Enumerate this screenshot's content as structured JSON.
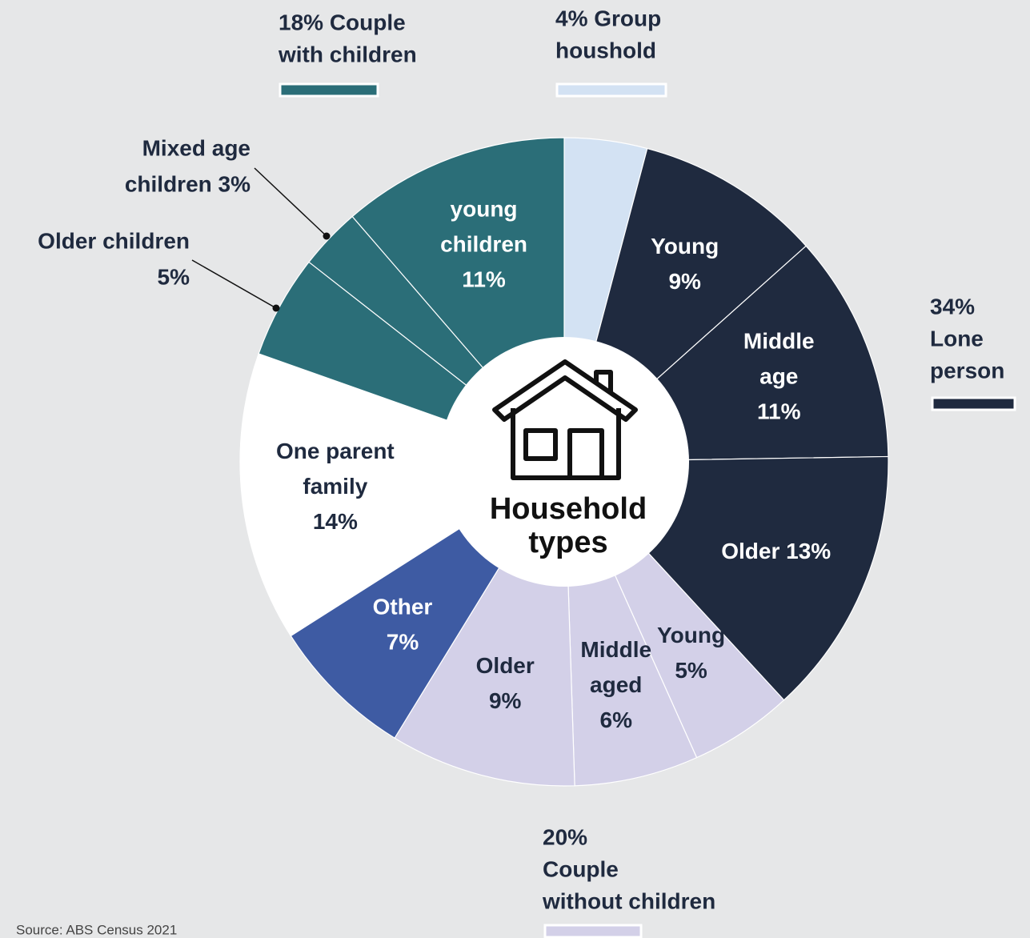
{
  "chart_data": {
    "type": "donut",
    "center_label": [
      "Household",
      "types"
    ],
    "source": "Source: ABS Census 2021",
    "groups": [
      {
        "lines": [
          "18% Couple",
          "with children"
        ],
        "color": "#2b6e78"
      },
      {
        "lines": [
          "4% Group",
          "houshold"
        ],
        "color": "#d3e2f3"
      },
      {
        "lines": [
          "34%",
          "Lone",
          "person"
        ],
        "color": "#1f2a3f"
      },
      {
        "lines": [
          "20%",
          "Couple",
          "without children"
        ],
        "color": "#d3d0e8"
      }
    ],
    "values": [
      4,
      9,
      11,
      13,
      5,
      6,
      9,
      7,
      14,
      5,
      3,
      11
    ],
    "colors": [
      "#d3e2f3",
      "#1f2a3f",
      "#1f2a3f",
      "#1f2a3f",
      "#d3d0e8",
      "#d3d0e8",
      "#d3d0e8",
      "#3e5ba3",
      "#ffffff",
      "#2b6e78",
      "#2b6e78",
      "#2b6e78"
    ],
    "value_labels": [
      null,
      [
        "Young",
        "9%"
      ],
      [
        "Middle",
        "age",
        "11%"
      ],
      [
        "Older 13%"
      ],
      [
        "Young",
        "5%"
      ],
      [
        "Middle",
        "aged",
        "6%"
      ],
      [
        "Older",
        "9%"
      ],
      [
        "Other",
        "7%"
      ],
      [
        "One parent",
        "family",
        "14%"
      ],
      [
        "Older children",
        "5%"
      ],
      [
        "Mixed age",
        "children 3%"
      ],
      [
        "young",
        "children",
        "11%"
      ]
    ]
  }
}
